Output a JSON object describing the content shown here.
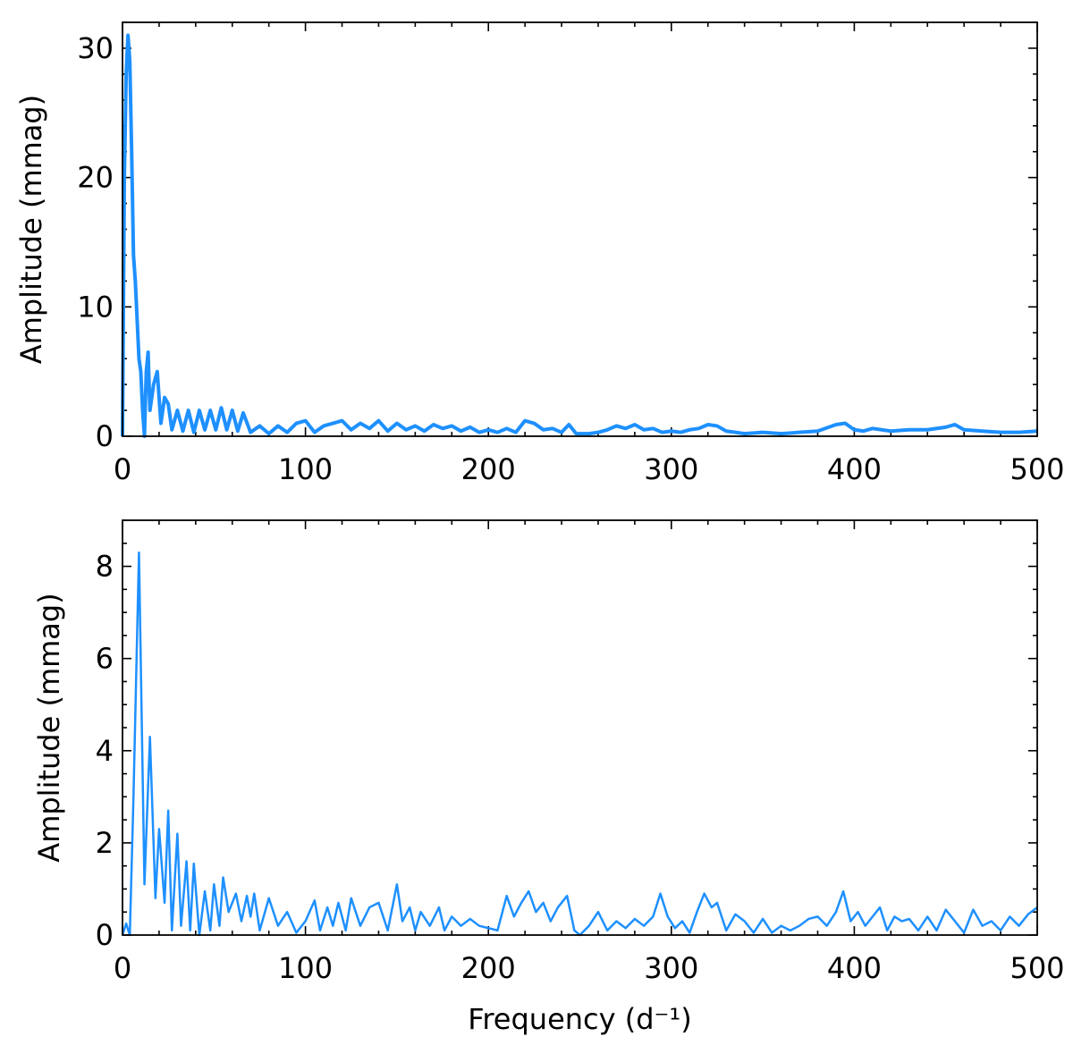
{
  "chart_data": [
    {
      "type": "line",
      "ylabel": "Amplitude (mmag)",
      "color": "#1e90ff",
      "xlim": [
        0,
        500
      ],
      "xticks": [
        0,
        100,
        200,
        300,
        400,
        500
      ],
      "ylim": [
        0,
        32
      ],
      "yticks": [
        0,
        10,
        20,
        30
      ],
      "x": [
        0,
        1,
        2,
        3,
        4,
        5,
        6,
        7,
        8,
        9,
        10,
        11,
        12,
        13,
        14,
        15,
        17,
        19,
        21,
        23,
        25,
        27,
        30,
        33,
        36,
        39,
        42,
        45,
        48,
        51,
        54,
        57,
        60,
        63,
        66,
        70,
        75,
        80,
        85,
        90,
        95,
        100,
        105,
        110,
        115,
        120,
        125,
        130,
        135,
        140,
        145,
        150,
        155,
        160,
        165,
        170,
        175,
        180,
        185,
        190,
        195,
        200,
        205,
        210,
        215,
        220,
        225,
        230,
        235,
        240,
        244,
        248,
        255,
        260,
        265,
        270,
        275,
        280,
        285,
        290,
        295,
        300,
        305,
        310,
        315,
        320,
        325,
        330,
        335,
        340,
        350,
        360,
        370,
        380,
        390,
        395,
        400,
        405,
        410,
        420,
        430,
        440,
        450,
        455,
        460,
        470,
        480,
        490,
        500
      ],
      "values": [
        0,
        20,
        28,
        31,
        29,
        22,
        14,
        12,
        9,
        6,
        5,
        2,
        0,
        5,
        6.5,
        2,
        4,
        5,
        1,
        3,
        2.5,
        0.5,
        2,
        0.4,
        2,
        0.3,
        2,
        0.5,
        2,
        0.5,
        2.2,
        0.5,
        2,
        0.4,
        1.8,
        0.3,
        0.8,
        0.2,
        0.8,
        0.3,
        1,
        1.2,
        0.3,
        0.8,
        1,
        1.2,
        0.5,
        1,
        0.6,
        1.2,
        0.4,
        1,
        0.5,
        0.8,
        0.4,
        0.9,
        0.6,
        0.8,
        0.4,
        0.7,
        0.3,
        0.5,
        0.3,
        0.6,
        0.3,
        1.2,
        1,
        0.5,
        0.6,
        0.3,
        0.9,
        0.2,
        0.2,
        0.3,
        0.5,
        0.8,
        0.6,
        0.9,
        0.5,
        0.6,
        0.3,
        0.4,
        0.3,
        0.5,
        0.6,
        0.9,
        0.8,
        0.4,
        0.3,
        0.2,
        0.3,
        0.2,
        0.3,
        0.4,
        0.9,
        1,
        0.5,
        0.4,
        0.6,
        0.4,
        0.5,
        0.5,
        0.7,
        0.9,
        0.5,
        0.4,
        0.3,
        0.3,
        0.4
      ]
    },
    {
      "type": "line",
      "xlabel": "Frequency (d⁻¹)",
      "ylabel": "Amplitude (mmag)",
      "color": "#1e90ff",
      "xlim": [
        0,
        500
      ],
      "xticks": [
        0,
        100,
        200,
        300,
        400,
        500
      ],
      "ylim": [
        0,
        9
      ],
      "yticks": [
        0,
        2,
        4,
        6,
        8
      ],
      "x": [
        0,
        2,
        4,
        6,
        9,
        12,
        15,
        18,
        20,
        23,
        25,
        27,
        30,
        32,
        35,
        37,
        39,
        42,
        45,
        48,
        50,
        53,
        55,
        58,
        62,
        65,
        68,
        70,
        72,
        75,
        80,
        85,
        90,
        95,
        100,
        105,
        108,
        112,
        115,
        118,
        122,
        125,
        130,
        135,
        140,
        145,
        150,
        153,
        157,
        160,
        163,
        168,
        173,
        176,
        180,
        185,
        190,
        195,
        200,
        205,
        210,
        214,
        218,
        222,
        226,
        230,
        234,
        238,
        243,
        247,
        250,
        255,
        260,
        265,
        270,
        275,
        280,
        285,
        290,
        294,
        298,
        302,
        306,
        310,
        314,
        318,
        322,
        325,
        330,
        335,
        340,
        345,
        350,
        355,
        360,
        365,
        370,
        375,
        380,
        385,
        390,
        394,
        398,
        402,
        406,
        410,
        414,
        418,
        422,
        426,
        430,
        435,
        440,
        445,
        450,
        455,
        460,
        465,
        470,
        475,
        480,
        485,
        490,
        495,
        500
      ],
      "values": [
        0,
        0.25,
        0,
        3,
        8.3,
        1.1,
        4.3,
        0.8,
        2.3,
        0.7,
        2.7,
        0.1,
        2.2,
        0.2,
        1.6,
        0.1,
        1.55,
        0,
        0.95,
        0.1,
        1.1,
        0.2,
        1.25,
        0.5,
        0.9,
        0.3,
        0.85,
        0.4,
        0.9,
        0.1,
        0.8,
        0.2,
        0.5,
        0.05,
        0.3,
        0.75,
        0.1,
        0.6,
        0.2,
        0.7,
        0.1,
        0.8,
        0.2,
        0.6,
        0.7,
        0.1,
        1.1,
        0.3,
        0.6,
        0.1,
        0.5,
        0.2,
        0.6,
        0.1,
        0.4,
        0.2,
        0.35,
        0.2,
        0.15,
        0.1,
        0.85,
        0.4,
        0.7,
        0.95,
        0.5,
        0.7,
        0.3,
        0.6,
        0.85,
        0.1,
        0,
        0.2,
        0.5,
        0.1,
        0.3,
        0.15,
        0.35,
        0.2,
        0.4,
        0.9,
        0.4,
        0.15,
        0.3,
        0.05,
        0.5,
        0.9,
        0.6,
        0.7,
        0.1,
        0.45,
        0.3,
        0.05,
        0.35,
        0.05,
        0.2,
        0.1,
        0.2,
        0.35,
        0.4,
        0.2,
        0.5,
        0.95,
        0.3,
        0.5,
        0.2,
        0.4,
        0.6,
        0.1,
        0.4,
        0.3,
        0.35,
        0.1,
        0.4,
        0.1,
        0.55,
        0.3,
        0.05,
        0.55,
        0.2,
        0.3,
        0.1,
        0.4,
        0.2,
        0.45,
        0.6
      ]
    }
  ]
}
